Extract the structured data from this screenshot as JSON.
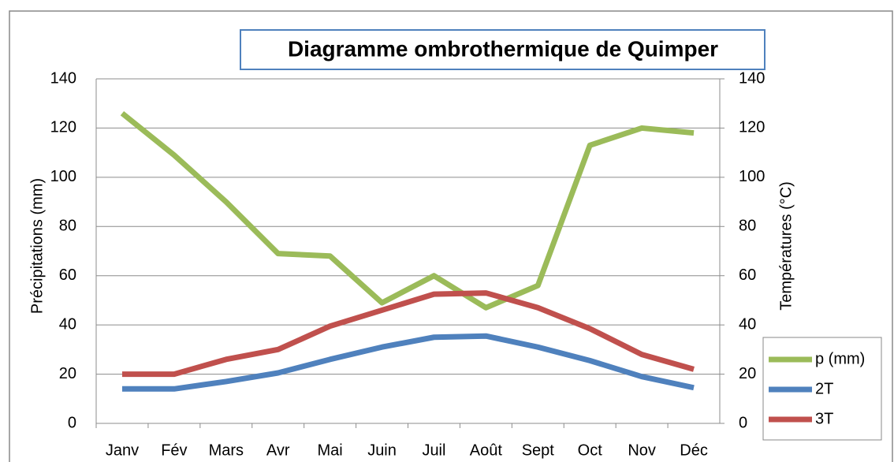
{
  "chart_data": {
    "type": "line",
    "title": "Diagramme ombrothermique de Quimper",
    "ylabel": "Précipitations (mm)",
    "y2label": "Températures (°C)",
    "categories": [
      "Janv",
      "Fév",
      "Mars",
      "Avr",
      "Mai",
      "Juin",
      "Juil",
      "Août",
      "Sept",
      "Oct",
      "Nov",
      "Déc"
    ],
    "series": [
      {
        "name": "p (mm)",
        "color": "#9bbb59",
        "values": [
          126,
          109,
          90,
          69,
          68,
          49,
          60,
          47,
          56,
          113,
          120,
          118
        ]
      },
      {
        "name": "2T",
        "color": "#4f81bd",
        "axis": "y2",
        "values": [
          14,
          14,
          17,
          20.5,
          26,
          31,
          35,
          35.5,
          31,
          25.5,
          19,
          14.5
        ]
      },
      {
        "name": "3T",
        "color": "#c0504d",
        "axis": "y2",
        "values": [
          20,
          20,
          26,
          30,
          39.5,
          46,
          52.5,
          53,
          47,
          38.5,
          28,
          22
        ]
      }
    ],
    "ylim": [
      0,
      140
    ],
    "yticks": [
      0,
      20,
      40,
      60,
      80,
      100,
      120,
      140
    ],
    "y2lim": [
      0,
      140
    ],
    "y2ticks": [
      0,
      20,
      40,
      60,
      80,
      100,
      120,
      140
    ],
    "grid": true,
    "legend": "right"
  }
}
